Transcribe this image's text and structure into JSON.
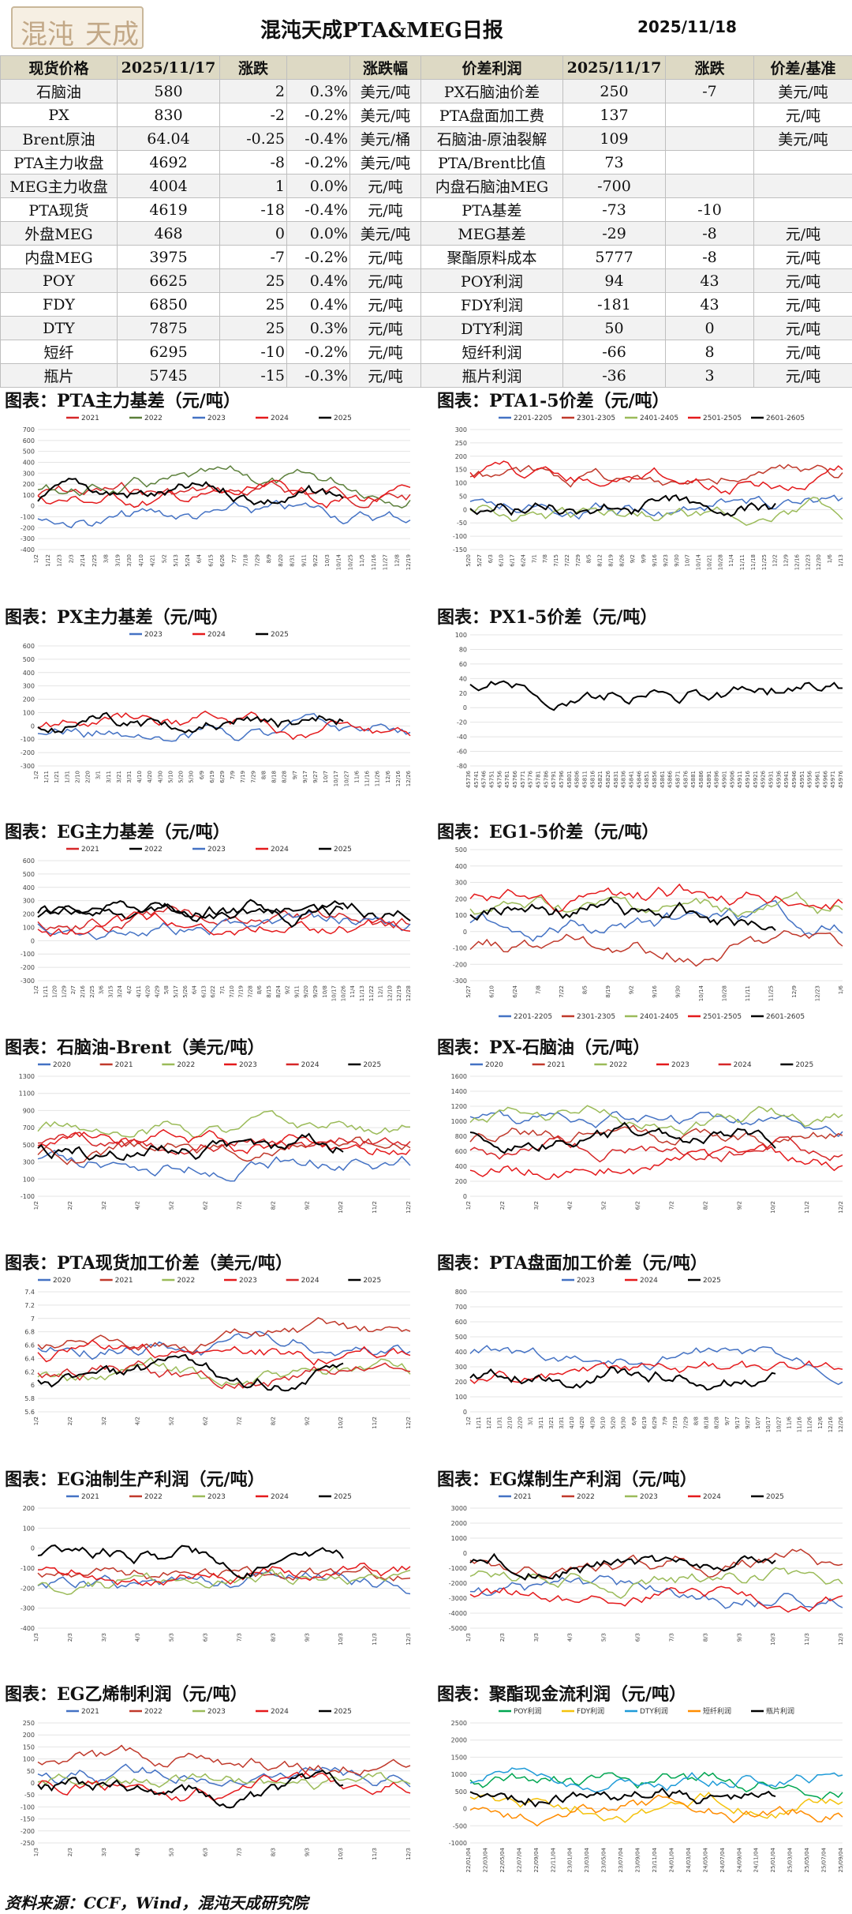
{
  "header": {
    "logo": "混沌天成",
    "title": "混沌天成PTA&MEG日报",
    "date": "2025/11/18"
  },
  "table": {
    "headers": [
      "现货价格",
      "2025/11/17",
      "涨跌",
      "",
      "涨跌幅",
      "价差利润",
      "2025/11/17",
      "涨跌",
      "价差/基准"
    ],
    "rows": [
      [
        "石脑油",
        "580",
        "2",
        "0.3%",
        "美元/吨",
        "PX石脑油价差",
        "250",
        "-7",
        "美元/吨"
      ],
      [
        "PX",
        "830",
        "-2",
        "-0.2%",
        "美元/吨",
        "PTA盘面加工费",
        "137",
        "",
        "元/吨"
      ],
      [
        "Brent原油",
        "64.04",
        "-0.25",
        "-0.4%",
        "美元/桶",
        "石脑油-原油裂解",
        "109",
        "",
        "美元/吨"
      ],
      [
        "PTA主力收盘",
        "4692",
        "-8",
        "-0.2%",
        "美元/吨",
        "PTA/Brent比值",
        "73",
        "",
        ""
      ],
      [
        "MEG主力收盘",
        "4004",
        "1",
        "0.0%",
        "元/吨",
        "内盘石脑油MEG",
        "-700",
        "",
        ""
      ],
      [
        "PTA现货",
        "4619",
        "-18",
        "-0.4%",
        "元/吨",
        "PTA基差",
        "-73",
        "-10",
        ""
      ],
      [
        "外盘MEG",
        "468",
        "0",
        "0.0%",
        "美元/吨",
        "MEG基差",
        "-29",
        "-8",
        "元/吨"
      ],
      [
        "内盘MEG",
        "3975",
        "-7",
        "-0.2%",
        "元/吨",
        "聚酯原料成本",
        "5777",
        "-8",
        "元/吨"
      ],
      [
        "POY",
        "6625",
        "25",
        "0.4%",
        "元/吨",
        "POY利润",
        "94",
        "43",
        "元/吨"
      ],
      [
        "FDY",
        "6850",
        "25",
        "0.4%",
        "元/吨",
        "FDY利润",
        "-181",
        "43",
        "元/吨"
      ],
      [
        "DTY",
        "7875",
        "25",
        "0.3%",
        "元/吨",
        "DTY利润",
        "50",
        "0",
        "元/吨"
      ],
      [
        "短纤",
        "6295",
        "-10",
        "-0.2%",
        "元/吨",
        "短纤利润",
        "-66",
        "8",
        "元/吨"
      ],
      [
        "瓶片",
        "5745",
        "-15",
        "-0.3%",
        "元/吨",
        "瓶片利润",
        "-36",
        "3",
        "元/吨"
      ]
    ]
  },
  "charts": [
    {
      "title": "图表：PTA主力基差（元/吨）",
      "legend": [
        "2021",
        "2022",
        "2023",
        "2024",
        "2025"
      ],
      "colors": [
        "#d62728",
        "#5b7f3a",
        "#4472c4",
        "#e41a1c",
        "#000000"
      ],
      "yticks": [
        "700",
        "600",
        "500",
        "400",
        "300",
        "200",
        "100",
        "0",
        "-100",
        "-200",
        "-300",
        "-400"
      ],
      "xticks": [
        "1/2",
        "1/12",
        "1/23",
        "2/3",
        "2/14",
        "2/25",
        "3/8",
        "3/19",
        "3/30",
        "4/10",
        "4/21",
        "5/2",
        "5/13",
        "5/24",
        "6/4",
        "6/15",
        "6/26",
        "7/7",
        "7/18",
        "7/29",
        "8/9",
        "8/20",
        "8/31",
        "9/11",
        "9/22",
        "10/3",
        "10/14",
        "10/25",
        "11/5",
        "11/16",
        "11/27",
        "12/8",
        "12/19"
      ]
    },
    {
      "title": "图表：PTA1-5价差（元/吨）",
      "legend": [
        "2201-2205",
        "2301-2305",
        "2401-2405",
        "2501-2505",
        "2601-2605"
      ],
      "colors": [
        "#4472c4",
        "#c0392b",
        "#9bbb59",
        "#e41a1c",
        "#000000"
      ],
      "yticks": [
        "300",
        "250",
        "200",
        "150",
        "100",
        "50",
        "0",
        "-50",
        "-100",
        "-150"
      ],
      "xticks": [
        "5/20",
        "5/27",
        "6/3",
        "6/10",
        "6/17",
        "6/24",
        "7/1",
        "7/8",
        "7/15",
        "7/22",
        "7/29",
        "8/5",
        "8/12",
        "8/19",
        "8/26",
        "9/2",
        "9/9",
        "9/16",
        "9/23",
        "9/30",
        "10/7",
        "10/14",
        "10/21",
        "10/28",
        "11/4",
        "11/11",
        "11/18",
        "11/25",
        "12/2",
        "12/9",
        "12/16",
        "12/23",
        "12/30",
        "1/6",
        "1/13"
      ]
    },
    {
      "title": "图表：PX主力基差（元/吨）",
      "legend": [
        "2023",
        "2024",
        "2025"
      ],
      "colors": [
        "#4472c4",
        "#e41a1c",
        "#000000"
      ],
      "yticks": [
        "600",
        "500",
        "400",
        "300",
        "200",
        "100",
        "0",
        "-100",
        "-200",
        "-300"
      ],
      "xticks": [
        "1/2",
        "1/11",
        "1/21",
        "1/31",
        "2/10",
        "2/20",
        "3/1",
        "3/11",
        "3/21",
        "3/31",
        "4/10",
        "4/20",
        "4/30",
        "5/10",
        "5/20",
        "5/30",
        "6/9",
        "6/19",
        "6/29",
        "7/9",
        "7/19",
        "7/29",
        "8/8",
        "8/18",
        "8/28",
        "9/7",
        "9/17",
        "9/27",
        "10/7",
        "10/17",
        "10/27",
        "11/6",
        "11/16",
        "11/26",
        "12/6",
        "12/16",
        "12/26"
      ]
    },
    {
      "title": "图表：PX1-5价差（元/吨）",
      "legend": [],
      "colors": [
        "#000000"
      ],
      "yticks": [
        "100",
        "80",
        "60",
        "40",
        "20",
        "0",
        "-20",
        "-40",
        "-60",
        "-80"
      ],
      "xticks": [
        "45736",
        "45741",
        "45746",
        "45751",
        "45756",
        "45761",
        "45766",
        "45771",
        "45776",
        "45781",
        "45786",
        "45791",
        "45796",
        "45801",
        "45806",
        "45811",
        "45816",
        "45821",
        "45826",
        "45831",
        "45836",
        "45841",
        "45846",
        "45851",
        "45856",
        "45861",
        "45866",
        "45871",
        "45876",
        "45881",
        "45886",
        "45891",
        "45896",
        "45901",
        "45906",
        "45911",
        "45916",
        "45921",
        "45926",
        "45931",
        "45936",
        "45941",
        "45946",
        "45951",
        "45956",
        "45961",
        "45966",
        "45971",
        "45976"
      ]
    },
    {
      "title": "图表：EG主力基差（元/吨）",
      "legend": [
        "2021",
        "2022",
        "2023",
        "2024",
        "2025"
      ],
      "colors": [
        "#d62728",
        "#000000",
        "#4472c4",
        "#e41a1c",
        "#000000"
      ],
      "yticks": [
        "600",
        "500",
        "400",
        "300",
        "200",
        "100",
        "0",
        "-100",
        "-200",
        "-300"
      ],
      "xticks": [
        "1/2",
        "1/11",
        "1/20",
        "1/29",
        "2/7",
        "2/16",
        "2/25",
        "3/6",
        "3/15",
        "3/24",
        "4/2",
        "4/11",
        "4/20",
        "4/29",
        "5/8",
        "5/17",
        "5/26",
        "6/4",
        "6/13",
        "6/22",
        "7/1",
        "7/10",
        "7/19",
        "7/28",
        "8/6",
        "8/15",
        "8/24",
        "9/2",
        "9/11",
        "9/20",
        "9/29",
        "10/8",
        "10/17",
        "10/26",
        "11/4",
        "11/13",
        "11/22",
        "12/1",
        "12/10",
        "12/19",
        "12/28"
      ]
    },
    {
      "title": "图表：EG1-5价差（元/吨）",
      "legend": [
        "2201-2205",
        "2301-2305",
        "2401-2405",
        "2501-2505",
        "2601-2605"
      ],
      "colors": [
        "#4472c4",
        "#c0392b",
        "#9bbb59",
        "#e41a1c",
        "#000000"
      ],
      "yticks": [
        "500",
        "400",
        "300",
        "200",
        "100",
        "0",
        "-100",
        "-200",
        "-300"
      ],
      "xticks": [
        "5/27",
        "6/10",
        "6/24",
        "7/8",
        "7/22",
        "8/5",
        "8/19",
        "9/2",
        "9/16",
        "9/30",
        "10/14",
        "10/28",
        "11/11",
        "11/25",
        "12/9",
        "12/23",
        "1/6"
      ]
    },
    {
      "title": "图表：石脑油-Brent（美元/吨）",
      "legend": [
        "2020",
        "2021",
        "2022",
        "2023",
        "2024",
        "2025"
      ],
      "colors": [
        "#4472c4",
        "#c0392b",
        "#9bbb59",
        "#e41a1c",
        "#d62728",
        "#000000"
      ],
      "yticks": [
        "1300",
        "1100",
        "900",
        "700",
        "500",
        "300",
        "100",
        "-100"
      ],
      "xticks": [
        "1/2",
        "2/2",
        "3/2",
        "4/2",
        "5/2",
        "6/2",
        "7/2",
        "8/2",
        "9/2",
        "10/2",
        "11/2",
        "12/2"
      ]
    },
    {
      "title": "图表：PX-石脑油（元/吨）",
      "legend": [
        "2020",
        "2021",
        "2022",
        "2023",
        "2024",
        "2025"
      ],
      "colors": [
        "#4472c4",
        "#c0392b",
        "#9bbb59",
        "#e41a1c",
        "#d62728",
        "#000000"
      ],
      "yticks": [
        "1600",
        "1400",
        "1200",
        "1000",
        "800",
        "600",
        "400",
        "200",
        "0"
      ],
      "xticks": [
        "1/2",
        "2/2",
        "3/2",
        "4/2",
        "5/2",
        "6/2",
        "7/2",
        "8/2",
        "9/2",
        "10/2",
        "11/2",
        "12/2"
      ]
    },
    {
      "title": "图表：PTA现货加工价差（美元/吨）",
      "legend": [
        "2020",
        "2021",
        "2022",
        "2023",
        "2024",
        "2025"
      ],
      "colors": [
        "#4472c4",
        "#c0392b",
        "#9bbb59",
        "#e41a1c",
        "#d62728",
        "#000000"
      ],
      "yticks": [
        "7.4",
        "7.2",
        "7",
        "6.8",
        "6.6",
        "6.4",
        "6.2",
        "6",
        "5.8",
        "5.6"
      ],
      "xticks": [
        "1/2",
        "2/2",
        "3/2",
        "4/2",
        "5/2",
        "6/2",
        "7/2",
        "8/2",
        "9/2",
        "10/2",
        "11/2",
        "12/2"
      ]
    },
    {
      "title": "图表：PTA盘面加工价差（元/吨）",
      "legend": [
        "2023",
        "2024",
        "2025"
      ],
      "colors": [
        "#4472c4",
        "#e41a1c",
        "#000000"
      ],
      "yticks": [
        "800",
        "700",
        "600",
        "500",
        "400",
        "300",
        "200",
        "100",
        "0"
      ],
      "xticks": [
        "1/2",
        "1/11",
        "1/21",
        "1/31",
        "2/10",
        "2/20",
        "3/1",
        "3/11",
        "3/21",
        "3/31",
        "4/10",
        "4/20",
        "4/30",
        "5/10",
        "5/20",
        "5/30",
        "6/9",
        "6/19",
        "6/29",
        "7/9",
        "7/19",
        "7/29",
        "8/8",
        "8/18",
        "8/28",
        "9/7",
        "9/17",
        "9/27",
        "10/7",
        "10/17",
        "10/27",
        "11/6",
        "11/16",
        "11/26",
        "12/6",
        "12/16",
        "12/26"
      ]
    },
    {
      "title": "图表：EG油制生产利润（元/吨）",
      "legend": [
        "2021",
        "2022",
        "2023",
        "2024",
        "2025"
      ],
      "colors": [
        "#4472c4",
        "#c0392b",
        "#9bbb59",
        "#e41a1c",
        "#000000"
      ],
      "yticks": [
        "200",
        "100",
        "0",
        "-100",
        "-200",
        "-300",
        "-400"
      ],
      "xticks": [
        "1/3",
        "2/3",
        "3/3",
        "4/3",
        "5/3",
        "6/3",
        "7/3",
        "8/3",
        "9/3",
        "10/3",
        "11/3",
        "12/3"
      ]
    },
    {
      "title": "图表：EG煤制生产利润（元/吨）",
      "legend": [
        "2021",
        "2022",
        "2023",
        "2024",
        "2025"
      ],
      "colors": [
        "#4472c4",
        "#c0392b",
        "#9bbb59",
        "#e41a1c",
        "#000000"
      ],
      "yticks": [
        "3000",
        "2000",
        "1000",
        "0",
        "-1000",
        "-2000",
        "-3000",
        "-4000",
        "-5000"
      ],
      "xticks": [
        "1/3",
        "2/3",
        "3/3",
        "4/3",
        "5/3",
        "6/3",
        "7/3",
        "8/3",
        "9/3",
        "10/3",
        "11/3",
        "12/3"
      ]
    },
    {
      "title": "图表：EG乙烯制利润（元/吨）",
      "legend": [
        "2021",
        "2022",
        "2023",
        "2024",
        "2025"
      ],
      "colors": [
        "#4472c4",
        "#c0392b",
        "#9bbb59",
        "#e41a1c",
        "#000000"
      ],
      "yticks": [
        "250",
        "200",
        "150",
        "100",
        "50",
        "0",
        "-50",
        "-100",
        "-150",
        "-200",
        "-250"
      ],
      "xticks": [
        "1/3",
        "2/3",
        "3/3",
        "4/3",
        "5/3",
        "6/3",
        "7/3",
        "8/3",
        "9/3",
        "10/3",
        "11/3",
        "12/3"
      ]
    },
    {
      "title": "图表：聚酯现金流利润（元/吨）",
      "legend": [
        "POY利润",
        "FDY利润",
        "DTY利润",
        "短纤利润",
        "瓶片利润"
      ],
      "colors": [
        "#00a651",
        "#f4c20d",
        "#1f9bd8",
        "#ff8c00",
        "#000000"
      ],
      "yticks": [
        "2500",
        "2000",
        "1500",
        "1000",
        "500",
        "0",
        "-500",
        "-1000"
      ],
      "xticks": [
        "22/01/04",
        "22/03/04",
        "22/05/04",
        "22/07/04",
        "22/09/04",
        "22/11/04",
        "23/01/04",
        "23/03/04",
        "23/05/04",
        "23/07/04",
        "23/09/04",
        "23/11/04",
        "24/01/04",
        "24/03/04",
        "24/05/04",
        "24/07/04",
        "24/09/04",
        "24/11/04",
        "25/01/04",
        "25/03/04",
        "25/05/04",
        "25/07/04",
        "25/09/04"
      ]
    }
  ],
  "footer": "资料来源：CCF，Wind，混沌天成研究院"
}
